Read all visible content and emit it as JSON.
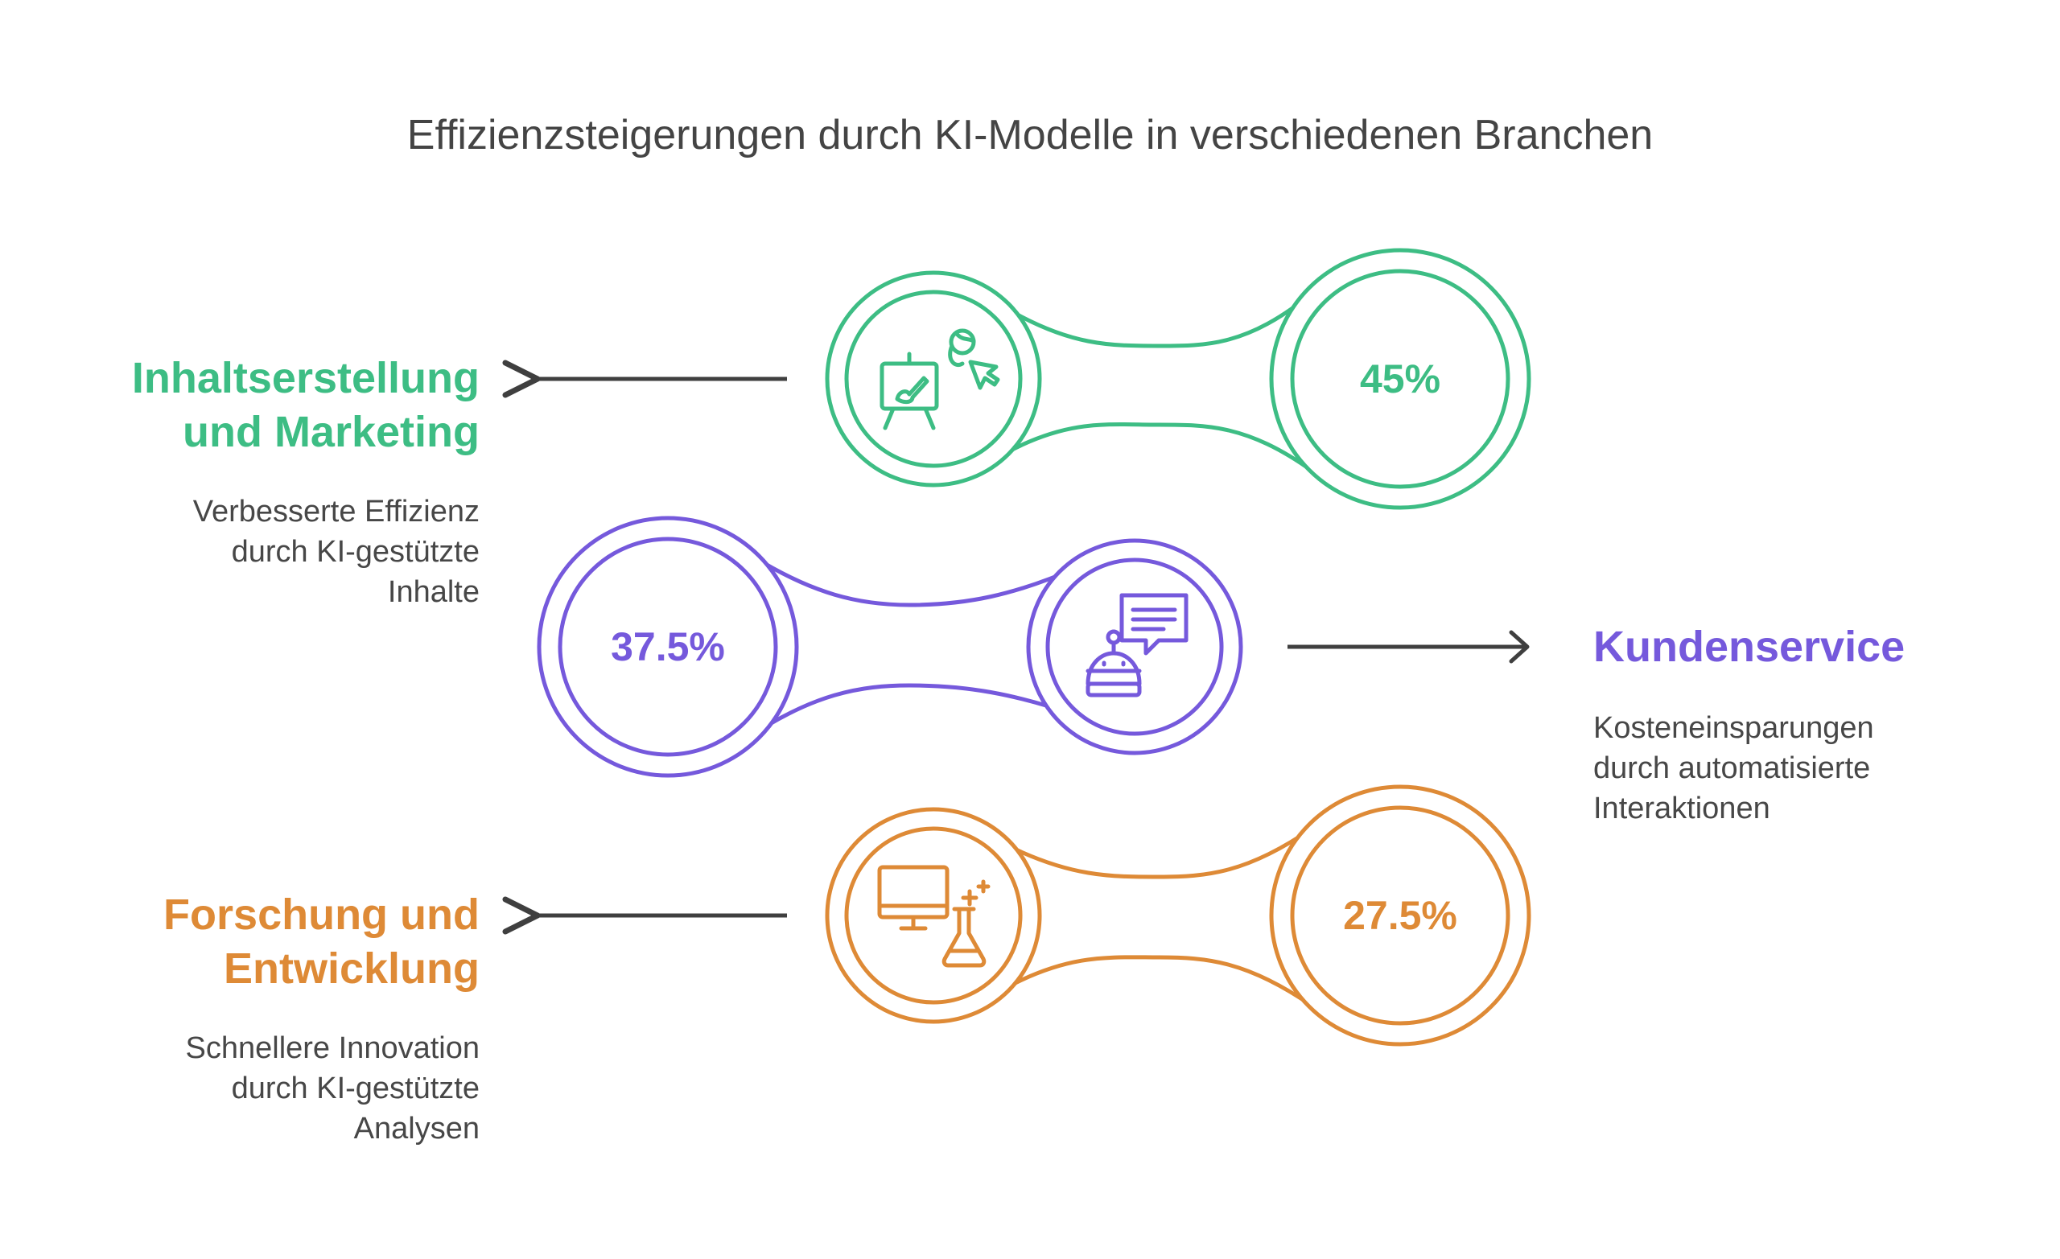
{
  "title": "Effizienzsteigerungen durch KI-Modelle in verschiedenen Branchen",
  "colors": {
    "green": "#3dbd84",
    "purple": "#7559dc",
    "orange": "#de8a36",
    "arrow": "#3f3f3f",
    "text": "#474747"
  },
  "items": [
    {
      "heading_line1": "Inhaltserstellung",
      "heading_line2": "und Marketing",
      "desc_line1": "Verbesserte Effizienz",
      "desc_line2": "durch KI-gestützte",
      "desc_line3": "Inhalte",
      "value": "45%",
      "icon": "presentation-easel-icon",
      "side": "left"
    },
    {
      "heading_line1": "Kundenservice",
      "desc_line1": "Kosteneinsparungen",
      "desc_line2": "durch automatisierte",
      "desc_line3": "Interaktionen",
      "value": "37.5%",
      "icon": "chatbot-icon",
      "side": "right"
    },
    {
      "heading_line1": "Forschung und",
      "heading_line2": "Entwicklung",
      "desc_line1": "Schnellere Innovation",
      "desc_line2": "durch KI-gestützte",
      "desc_line3": "Analysen",
      "value": "27.5%",
      "icon": "research-lab-icon",
      "side": "left"
    }
  ]
}
